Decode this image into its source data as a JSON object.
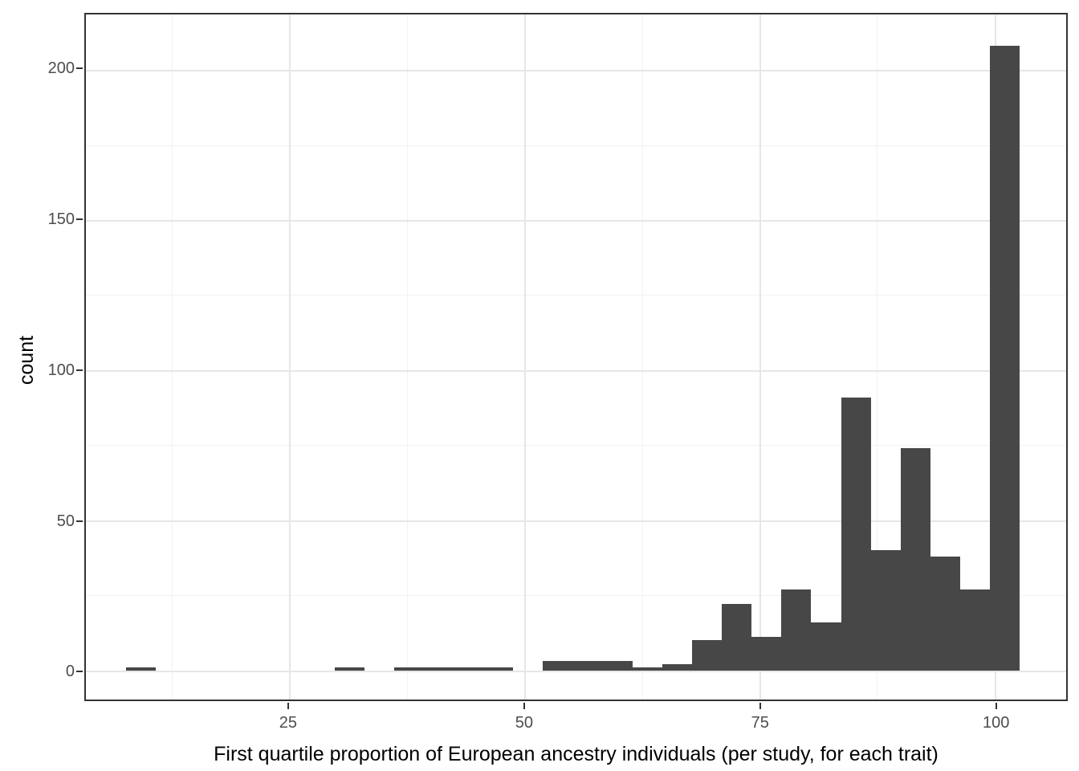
{
  "figure": {
    "background": "#ffffff",
    "panel_background": "#ffffff",
    "panel_border_color": "#333333",
    "tick_mark_color": "#333333",
    "tick_label_color": "#4d4d4d",
    "axis_title_color": "#000000"
  },
  "chart_data": {
    "type": "bar",
    "subtype": "histogram",
    "title": "",
    "xlabel": "First quartile proportion of European ancestry individuals (per study, for each trait)",
    "ylabel": "count",
    "bar_color": "#474747",
    "grid": {
      "major_color": "#e6e6e6",
      "minor_color": "#f2f2f2",
      "grid_on": true
    },
    "x_axis": {
      "range": [
        3.4,
        107.6
      ],
      "ticks": [
        25,
        50,
        75,
        100
      ],
      "tick_labels": [
        "25",
        "50",
        "75",
        "100"
      ],
      "minor_ticks": [
        12.5,
        37.5,
        62.5,
        87.5
      ]
    },
    "y_axis": {
      "range": [
        -9.75,
        218.5
      ],
      "ticks": [
        0,
        50,
        100,
        150,
        200
      ],
      "tick_labels": [
        "0",
        "50",
        "100",
        "150",
        "200"
      ],
      "minor_ticks": [
        25,
        75,
        125,
        175
      ]
    },
    "bin_width": 3.167,
    "bins": [
      {
        "start": 7.67,
        "end": 10.83,
        "count": 1
      },
      {
        "start": 29.83,
        "end": 33.0,
        "count": 1
      },
      {
        "start": 36.17,
        "end": 39.33,
        "count": 1
      },
      {
        "start": 39.33,
        "end": 42.5,
        "count": 1
      },
      {
        "start": 42.5,
        "end": 45.67,
        "count": 1
      },
      {
        "start": 45.67,
        "end": 48.83,
        "count": 1
      },
      {
        "start": 52.0,
        "end": 55.17,
        "count": 3
      },
      {
        "start": 55.17,
        "end": 58.33,
        "count": 3
      },
      {
        "start": 58.33,
        "end": 61.5,
        "count": 3
      },
      {
        "start": 61.5,
        "end": 64.67,
        "count": 1
      },
      {
        "start": 64.67,
        "end": 67.83,
        "count": 2
      },
      {
        "start": 67.83,
        "end": 71.0,
        "count": 10
      },
      {
        "start": 71.0,
        "end": 74.17,
        "count": 22
      },
      {
        "start": 74.17,
        "end": 77.33,
        "count": 11
      },
      {
        "start": 77.33,
        "end": 80.5,
        "count": 27
      },
      {
        "start": 80.5,
        "end": 83.67,
        "count": 16
      },
      {
        "start": 83.67,
        "end": 86.83,
        "count": 91
      },
      {
        "start": 86.83,
        "end": 90.0,
        "count": 40
      },
      {
        "start": 90.0,
        "end": 93.17,
        "count": 74
      },
      {
        "start": 93.17,
        "end": 96.33,
        "count": 38
      },
      {
        "start": 96.33,
        "end": 99.5,
        "count": 27
      },
      {
        "start": 99.5,
        "end": 102.67,
        "count": 208
      }
    ]
  }
}
